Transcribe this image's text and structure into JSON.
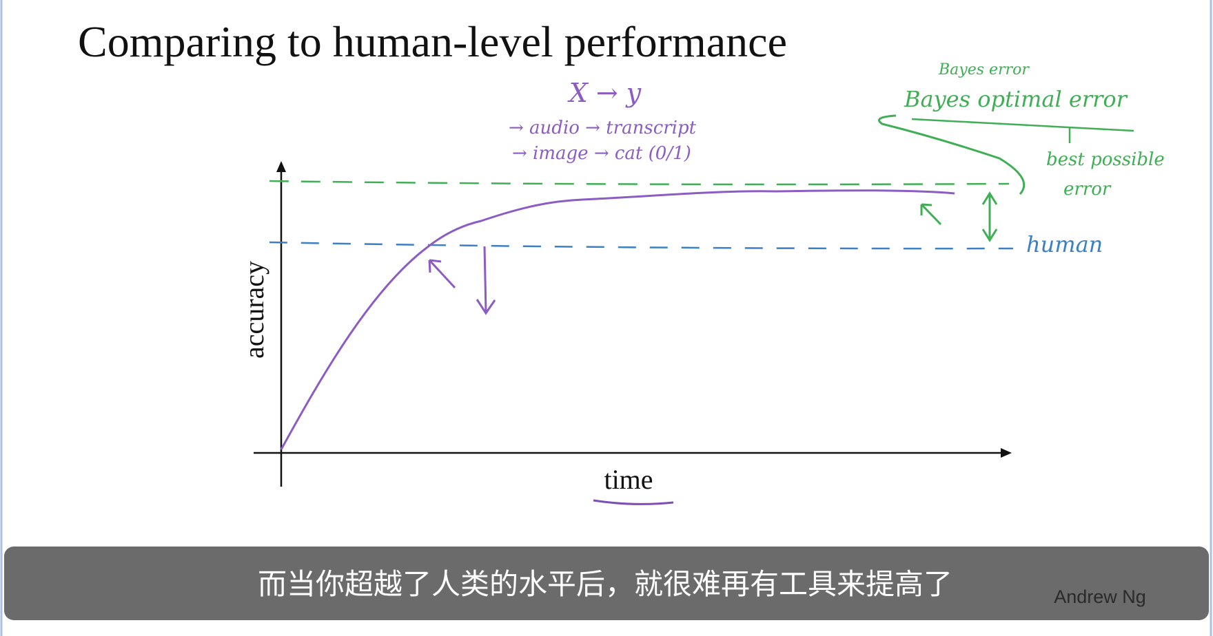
{
  "slide": {
    "title": "Comparing to human-level performance",
    "y_axis_label": "accuracy",
    "x_axis_label": "time",
    "notes": {
      "mapping": "X → y",
      "example_1": "→ audio → transcript",
      "example_2": "→ image → cat (0/1)",
      "bayes_error": "Bayes error",
      "bayes_optimal_error": "Bayes optimal error",
      "best_possible": "best possible",
      "error": "error",
      "human": "human"
    }
  },
  "subtitle": "而当你超越了人类的水平后，就很难再有工具来提高了",
  "watermark": "Andrew Ng"
}
